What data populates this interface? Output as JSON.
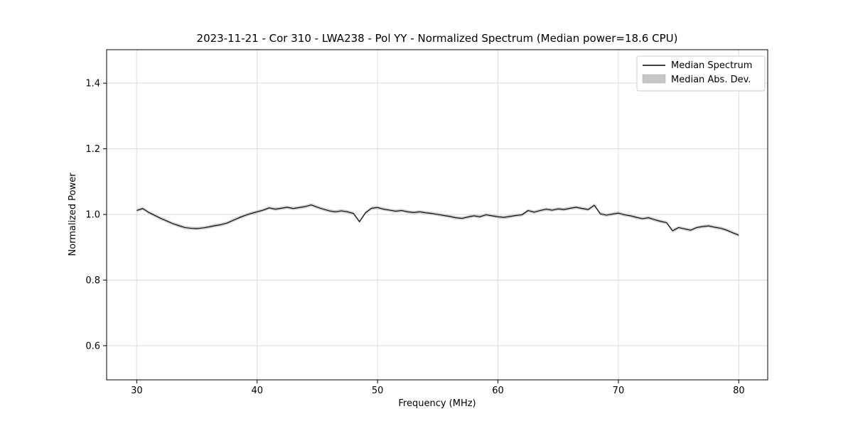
{
  "title": "2023-11-21 - Cor 310 - LWA238 - Pol YY - Normalized Spectrum (Median power=18.6 CPU)",
  "colors": {
    "line": "#000000",
    "band": "#c6c6c6",
    "grid": "#dcdcdc",
    "axis": "#000000",
    "legend_border": "#cccccc",
    "background": "#ffffff"
  },
  "legend": {
    "entries": [
      {
        "label": "Median Spectrum",
        "type": "line",
        "color": "#000000"
      },
      {
        "label": "Median Abs. Dev.",
        "type": "band",
        "color": "#c6c6c6"
      }
    ],
    "position": "upper right"
  },
  "chart_data": {
    "type": "line",
    "title": "2023-11-21 - Cor 310 - LWA238 - Pol YY - Normalized Spectrum (Median power=18.6 CPU)",
    "xlabel": "Frequency (MHz)",
    "ylabel": "Normalized Power",
    "xlim": [
      27.5,
      82.4
    ],
    "ylim": [
      0.496,
      1.502
    ],
    "xticks": [
      30,
      40,
      50,
      60,
      70,
      80
    ],
    "yticks": [
      0.6,
      0.8,
      1.0,
      1.2,
      1.4
    ],
    "grid": true,
    "legend_position": "upper right",
    "mad_halfwidth": 0.005,
    "series": [
      {
        "name": "Median Spectrum",
        "x": [
          30.0,
          30.5,
          31.0,
          31.5,
          32.0,
          32.5,
          33.0,
          33.5,
          34.0,
          34.5,
          35.0,
          35.5,
          36.0,
          36.5,
          37.0,
          37.5,
          38.0,
          38.5,
          39.0,
          39.5,
          40.0,
          40.5,
          41.0,
          41.5,
          42.0,
          42.5,
          43.0,
          43.5,
          44.0,
          44.5,
          45.0,
          45.5,
          46.0,
          46.5,
          47.0,
          47.5,
          48.0,
          48.5,
          49.0,
          49.5,
          50.0,
          50.5,
          51.0,
          51.5,
          52.0,
          52.5,
          53.0,
          53.5,
          54.0,
          54.5,
          55.0,
          55.5,
          56.0,
          56.5,
          57.0,
          57.5,
          58.0,
          58.5,
          59.0,
          59.5,
          60.0,
          60.5,
          61.0,
          61.5,
          62.0,
          62.5,
          63.0,
          63.5,
          64.0,
          64.5,
          65.0,
          65.5,
          66.0,
          66.5,
          67.0,
          67.5,
          68.0,
          68.5,
          69.0,
          69.5,
          70.0,
          70.5,
          71.0,
          71.5,
          72.0,
          72.5,
          73.0,
          73.5,
          74.0,
          74.5,
          75.0,
          75.5,
          76.0,
          76.5,
          77.0,
          77.5,
          78.0,
          78.5,
          79.0,
          79.5,
          80.0
        ],
        "y": [
          1.012,
          1.018,
          1.006,
          0.997,
          0.988,
          0.98,
          0.972,
          0.966,
          0.96,
          0.958,
          0.957,
          0.959,
          0.962,
          0.966,
          0.969,
          0.974,
          0.982,
          0.99,
          0.997,
          1.003,
          1.008,
          1.013,
          1.02,
          1.016,
          1.019,
          1.022,
          1.018,
          1.021,
          1.024,
          1.029,
          1.022,
          1.016,
          1.011,
          1.008,
          1.011,
          1.008,
          1.003,
          0.978,
          1.005,
          1.019,
          1.021,
          1.016,
          1.013,
          1.01,
          1.012,
          1.008,
          1.006,
          1.008,
          1.005,
          1.003,
          1.0,
          0.997,
          0.994,
          0.99,
          0.988,
          0.992,
          0.996,
          0.993,
          0.999,
          0.996,
          0.993,
          0.991,
          0.994,
          0.997,
          0.999,
          1.012,
          1.007,
          1.012,
          1.016,
          1.013,
          1.017,
          1.015,
          1.019,
          1.022,
          1.018,
          1.015,
          1.028,
          1.002,
          0.998,
          1.001,
          1.004,
          0.999,
          0.996,
          0.991,
          0.987,
          0.99,
          0.984,
          0.979,
          0.975,
          0.95,
          0.96,
          0.956,
          0.952,
          0.96,
          0.963,
          0.965,
          0.961,
          0.958,
          0.952,
          0.944,
          0.937
        ]
      }
    ]
  }
}
